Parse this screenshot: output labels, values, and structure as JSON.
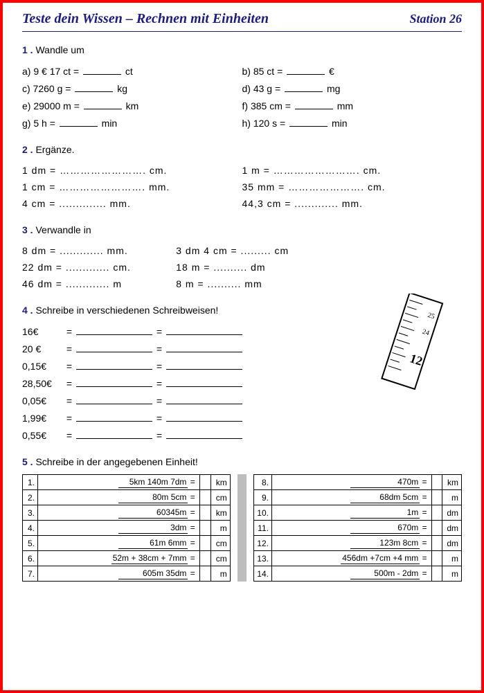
{
  "colors": {
    "border": "#ff0000",
    "heading": "#1a1a8a",
    "text": "#000000",
    "table_gap": "#bdbdbd",
    "background": "#ffffff"
  },
  "typography": {
    "title_font": "Brush Script MT / cursive",
    "title_fontsize": 20,
    "body_font": "Arial",
    "body_fontsize": 14,
    "table_fontsize": 12
  },
  "header": {
    "title": "Teste dein Wissen – Rechnen mit Einheiten",
    "station": "Station 26"
  },
  "sec1": {
    "num": "1",
    "label": "Wandle um",
    "items": {
      "a": {
        "prefix": "a) 9 € 17 ct =",
        "suffix": "ct"
      },
      "b": {
        "prefix": "b) 85 ct =",
        "suffix": "€"
      },
      "c": {
        "prefix": "c) 7260 g =",
        "suffix": "kg"
      },
      "d": {
        "prefix": "d) 43 g =",
        "suffix": "mg"
      },
      "e": {
        "prefix": "e) 29000 m =",
        "suffix": "km"
      },
      "f": {
        "prefix": "f) 385 cm =",
        "suffix": "mm"
      },
      "g": {
        "prefix": "g) 5 h =",
        "suffix": "min"
      },
      "h": {
        "prefix": "h) 120 s =",
        "suffix": "min"
      }
    }
  },
  "sec2": {
    "num": "2",
    "label": "Ergänze.",
    "rows": [
      {
        "l": "1 dm = ……………………. cm.",
        "r": "1 m = ……………………. cm."
      },
      {
        "l": "1 cm = ……………………. mm.",
        "r": "35 mm = …………………. cm."
      },
      {
        "l": "4 cm = .............. mm.",
        "r": "44,3 cm = ............. mm."
      }
    ]
  },
  "sec3": {
    "num": "3",
    "label": "Verwandle in",
    "rows": [
      {
        "l": "8 dm = ............. mm.",
        "r": "3 dm 4 cm = ......... cm"
      },
      {
        "l": "22 dm = ............. cm.",
        "r": "18 m = .......... dm"
      },
      {
        "l": "46 dm = ............. m",
        "r": "8 m = .......... mm"
      }
    ]
  },
  "sec4": {
    "num": "4",
    "label": "Schreibe in verschiedenen Schreibweisen!",
    "values": [
      "16€",
      "20 €",
      "0,15€",
      "28,50€",
      "0,05€",
      "1,99€",
      "0,55€"
    ]
  },
  "sec5": {
    "num": "5",
    "label": "Schreibe in der angegebenen Einheit!",
    "left": [
      {
        "n": "1.",
        "expr": "5km 140m 7dm",
        "unit": "km"
      },
      {
        "n": "2.",
        "expr": "80m 5cm",
        "unit": "cm"
      },
      {
        "n": "3.",
        "expr": "60345m",
        "unit": "km"
      },
      {
        "n": "4.",
        "expr": "3dm",
        "unit": "m"
      },
      {
        "n": "5.",
        "expr": "61m 6mm",
        "unit": "cm"
      },
      {
        "n": "6.",
        "expr": "52m + 38cm + 7mm",
        "unit": "cm"
      },
      {
        "n": "7.",
        "expr": "605m 35dm",
        "unit": "m"
      }
    ],
    "right": [
      {
        "n": "8.",
        "expr": "470m",
        "unit": "km"
      },
      {
        "n": "9.",
        "expr": "68dm 5cm",
        "unit": "m"
      },
      {
        "n": "10.",
        "expr": "1m",
        "unit": "dm"
      },
      {
        "n": "11.",
        "expr": "670m",
        "unit": "dm"
      },
      {
        "n": "12.",
        "expr": "123m 8cm",
        "unit": "dm"
      },
      {
        "n": "13.",
        "expr": "456dm +7cm +4 mm",
        "unit": "m"
      },
      {
        "n": "14.",
        "expr": "500m - 2dm",
        "unit": "m"
      }
    ]
  }
}
